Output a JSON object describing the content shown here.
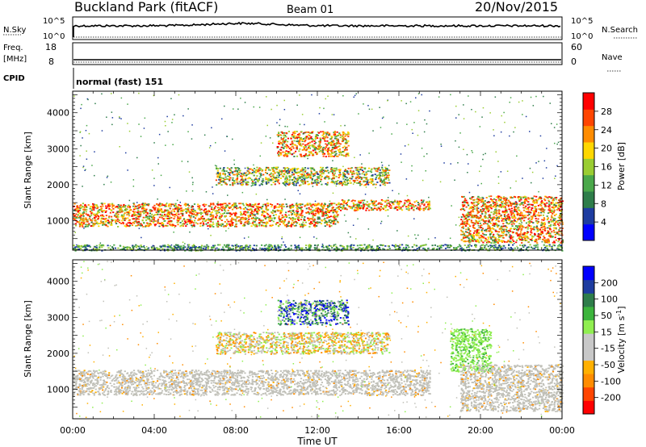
{
  "header": {
    "station": "Buckland Park (fitACF)",
    "beam": "Beam 01",
    "date": "20/Nov/2015"
  },
  "status": {
    "nsky_label": "N.Sky",
    "nsky_ticks": [
      "10^5",
      "10^0"
    ],
    "nsearch_label": "N.Search",
    "nsearch_ticks": [
      "10^5",
      "10^0"
    ],
    "freq_label": "Freq.",
    "freq_unit": "[MHz]",
    "freq_ticks": [
      "18",
      "8"
    ],
    "nave_label": "Nave",
    "nave_ticks": [
      "60",
      "0"
    ],
    "cpid_label": "CPID",
    "cpid_value": "normal (fast) 151"
  },
  "colors": {
    "power": [
      "#0000ff",
      "#1e3ca0",
      "#2e7d4a",
      "#4aa84a",
      "#9acd32",
      "#ffd700",
      "#ff8c00",
      "#ff4500",
      "#ff0000"
    ],
    "velocity": [
      "#ff0000",
      "#ff4500",
      "#ff8c00",
      "#ffb000",
      "#c8c8c8",
      "#c8c8c8",
      "#90ee50",
      "#3cb43c",
      "#2e7d4a",
      "#1e3ca0",
      "#0000ff"
    ],
    "velocity_ground": "#c0c0b8"
  },
  "chart_data": [
    {
      "type": "heatmap",
      "name": "power",
      "xlabel": "Time UT",
      "ylabel": "Slant Range [km]",
      "xlim_hours": [
        0,
        24
      ],
      "x_tick_labels": [
        "00:00",
        "04:00",
        "08:00",
        "12:00",
        "16:00",
        "20:00",
        "00:00"
      ],
      "ylim": [
        180,
        4600
      ],
      "y_ticks": [
        1000,
        2000,
        3000,
        4000
      ],
      "colorbar_label": "Power [dB]",
      "colorbar_ticks": [
        "28",
        "24",
        "20",
        "16",
        "12",
        "8",
        "4"
      ],
      "colorbar_range": [
        0,
        30
      ],
      "echo_regions": [
        {
          "t_start": 0,
          "t_end": 13,
          "range_low": 850,
          "range_high": 1500,
          "level": "high"
        },
        {
          "t_start": 13,
          "t_end": 17.5,
          "range_low": 1300,
          "range_high": 1600,
          "level": "high"
        },
        {
          "t_start": 7,
          "t_end": 15.5,
          "range_low": 2000,
          "range_high": 2500,
          "level": "medium"
        },
        {
          "t_start": 10,
          "t_end": 13.5,
          "range_low": 2800,
          "range_high": 3500,
          "level": "high"
        },
        {
          "t_start": 19,
          "t_end": 24,
          "range_low": 400,
          "range_high": 1700,
          "level": "high"
        },
        {
          "t_start": 0,
          "t_end": 24,
          "range_low": 180,
          "range_high": 350,
          "level": "low"
        }
      ]
    },
    {
      "type": "heatmap",
      "name": "velocity",
      "xlabel": "Time UT",
      "ylabel": "Slant Range [km]",
      "xlim_hours": [
        0,
        24
      ],
      "x_tick_labels": [
        "00:00",
        "04:00",
        "08:00",
        "12:00",
        "16:00",
        "20:00",
        "00:00"
      ],
      "ylim": [
        180,
        4600
      ],
      "y_ticks": [
        1000,
        2000,
        3000,
        4000
      ],
      "colorbar_label": "Velocity [m s^-1]",
      "colorbar_ticks": [
        "200",
        "100",
        "50",
        "15",
        "-15",
        "-50",
        "-100",
        "-200"
      ],
      "colorbar_range": [
        -250,
        250
      ],
      "echo_regions": [
        {
          "t_start": 0,
          "t_end": 17.5,
          "range_low": 850,
          "range_high": 1550,
          "kind": "ground scatter"
        },
        {
          "t_start": 7,
          "t_end": 15.5,
          "range_low": 2000,
          "range_high": 2600,
          "kind": "mixed, -50 to -15"
        },
        {
          "t_start": 10,
          "t_end": 13.5,
          "range_low": 2800,
          "range_high": 3500,
          "kind": "positive, 50 to 200"
        },
        {
          "t_start": 18.5,
          "t_end": 20.5,
          "range_low": 1500,
          "range_high": 2700,
          "kind": "positive, 15 to 50"
        },
        {
          "t_start": 19,
          "t_end": 24,
          "range_low": 400,
          "range_high": 1700,
          "kind": "ground scatter"
        }
      ]
    }
  ]
}
